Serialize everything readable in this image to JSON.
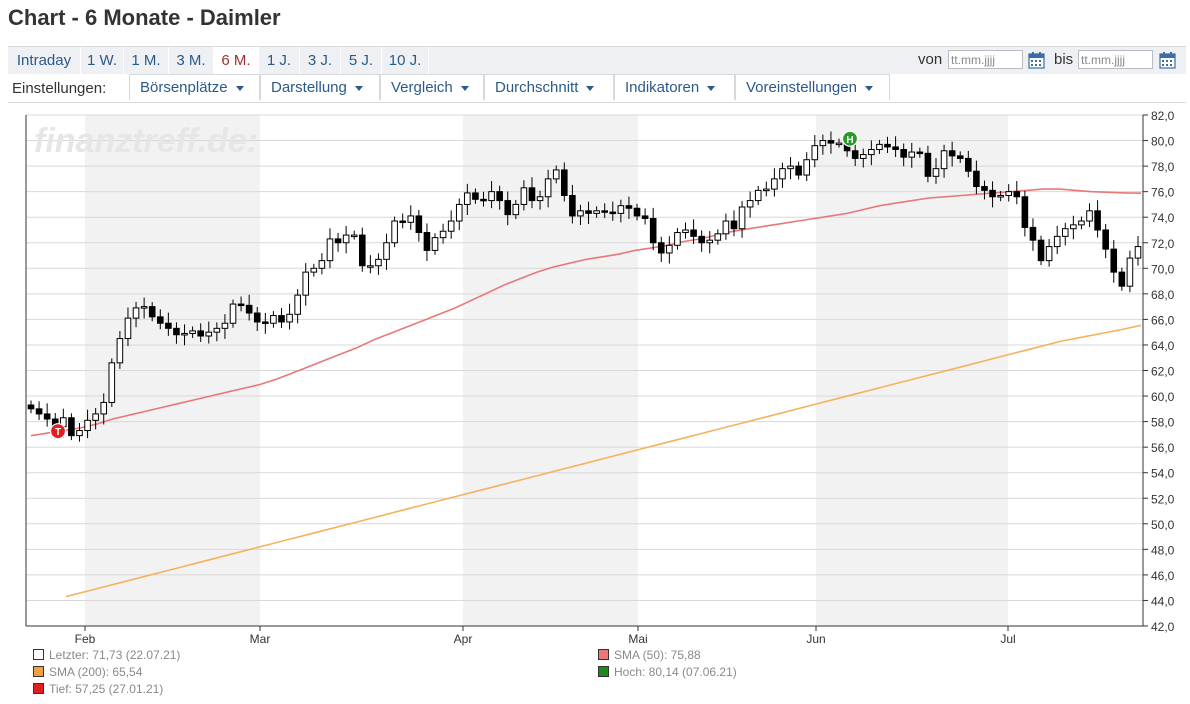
{
  "page_title": "Chart - 6 Monate - Daimler",
  "tabs": [
    "Intraday",
    "1 W.",
    "1 M.",
    "3 M.",
    "6 M.",
    "1 J.",
    "3 J.",
    "5 J.",
    "10 J."
  ],
  "active_tab": "6 M.",
  "date_range": {
    "from_label": "von",
    "from_placeholder": "tt.mm.jjjj",
    "to_label": "bis",
    "to_placeholder": "tt.mm.jjjj"
  },
  "settings": {
    "label": "Einstellungen:",
    "menus": [
      "Börsenplätze",
      "Darstellung",
      "Vergleich",
      "Durchschnitt",
      "Indikatoren",
      "Voreinstellungen"
    ]
  },
  "watermark": "finanztreff.de:",
  "colors": {
    "sma50": "#e87878",
    "sma200": "#f4b25e",
    "low_marker": "#e02020",
    "high_marker": "#2a9a2a",
    "candle": "#000000",
    "band": "#f2f2f2",
    "grid": "#d8d8d8"
  },
  "markers": {
    "low_letter": "T",
    "high_letter": "H"
  },
  "chart_data": {
    "type": "candlestick",
    "y_range": [
      42,
      82
    ],
    "y_ticks": [
      "82,0",
      "80,0",
      "78,0",
      "76,0",
      "74,0",
      "72,0",
      "70,0",
      "68,0",
      "66,0",
      "64,0",
      "62,0",
      "60,0",
      "58,0",
      "56,0",
      "54,0",
      "52,0",
      "50,0",
      "48,0",
      "46,0",
      "44,0",
      "42,0"
    ],
    "x_labels": [
      "Feb",
      "Mar",
      "Apr",
      "Mai",
      "Jun",
      "Jul"
    ],
    "grid": true,
    "close_series": [
      59.0,
      58.6,
      58.2,
      57.6,
      58.3,
      56.9,
      57.3,
      58.1,
      58.6,
      59.5,
      62.6,
      64.5,
      66.1,
      66.9,
      67.0,
      66.2,
      65.7,
      65.3,
      64.8,
      64.9,
      65.1,
      64.7,
      65.0,
      65.3,
      65.7,
      67.2,
      67.1,
      66.5,
      65.8,
      65.7,
      66.3,
      65.8,
      66.4,
      67.9,
      69.7,
      70.0,
      70.6,
      72.3,
      72.0,
      72.6,
      72.6,
      70.2,
      70.2,
      70.7,
      72.0,
      73.7,
      73.6,
      74.1,
      72.8,
      71.4,
      72.4,
      72.9,
      73.7,
      75.0,
      75.9,
      75.4,
      75.3,
      76.0,
      75.3,
      74.2,
      75.0,
      76.3,
      75.3,
      75.6,
      77.0,
      77.7,
      75.7,
      74.1,
      74.5,
      74.3,
      74.5,
      74.4,
      74.3,
      74.9,
      74.7,
      74.1,
      73.9,
      72.0,
      71.2,
      71.8,
      72.8,
      73.0,
      72.5,
      72.0,
      72.2,
      72.7,
      73.7,
      73.1,
      74.8,
      75.3,
      76.1,
      76.2,
      77.0,
      77.8,
      78.0,
      77.3,
      78.5,
      79.6,
      80.0,
      79.8,
      79.8,
      79.2,
      78.6,
      78.9,
      79.3,
      79.7,
      79.5,
      79.3,
      78.7,
      79.1,
      79.0,
      77.2,
      77.8,
      79.2,
      78.8,
      78.6,
      77.6,
      76.4,
      76.1,
      75.6,
      75.7,
      76.0,
      75.6,
      73.2,
      72.2,
      70.6,
      71.7,
      72.5,
      73.1,
      73.4,
      73.7,
      74.5,
      73.0,
      71.5,
      69.7,
      68.6,
      70.8,
      71.7
    ],
    "sma50_series": [
      56.9,
      57.1,
      57.3,
      57.5,
      57.8,
      58.2,
      58.5,
      58.8,
      59.1,
      59.4,
      59.7,
      60.0,
      60.3,
      60.6,
      60.9,
      61.3,
      61.8,
      62.3,
      62.8,
      63.3,
      63.8,
      64.4,
      64.9,
      65.4,
      65.9,
      66.4,
      66.9,
      67.5,
      68.1,
      68.7,
      69.2,
      69.7,
      70.1,
      70.4,
      70.7,
      70.9,
      71.1,
      71.4,
      71.6,
      71.8,
      72.1,
      72.3,
      72.6,
      72.9,
      73.1,
      73.3,
      73.5,
      73.7,
      73.9,
      74.1,
      74.3,
      74.6,
      74.9,
      75.1,
      75.3,
      75.5,
      75.6,
      75.7,
      75.8,
      75.9,
      76.0,
      76.1,
      76.2,
      76.2,
      76.1,
      76.0,
      75.95,
      75.9,
      75.88
    ],
    "sma200_series": [
      44.3,
      44.7,
      45.1,
      45.5,
      45.9,
      46.3,
      46.7,
      47.1,
      47.5,
      47.9,
      48.3,
      48.7,
      49.1,
      49.5,
      49.9,
      50.3,
      50.7,
      51.1,
      51.5,
      51.9,
      52.3,
      52.7,
      53.1,
      53.5,
      53.9,
      54.3,
      54.7,
      55.1,
      55.5,
      55.9,
      56.3,
      56.7,
      57.1,
      57.5,
      57.9,
      58.3,
      58.7,
      59.1,
      59.5,
      59.9,
      60.3,
      60.7,
      61.1,
      61.5,
      61.9,
      62.3,
      62.7,
      63.1,
      63.5,
      63.9,
      64.3,
      64.6,
      64.9,
      65.2,
      65.54
    ],
    "low_point": {
      "label": "Tief",
      "value": 57.25,
      "date": "27.01.21"
    },
    "high_point": {
      "label": "Hoch",
      "value": 80.14,
      "date": "07.06.21"
    }
  },
  "legend": [
    {
      "text": "Letzter: 71,73 (22.07.21)",
      "color": "#ffffff"
    },
    {
      "text": "SMA (50): 75,88",
      "color": "#e87878"
    },
    {
      "text": "SMA (200): 65,54",
      "color": "#f4a040"
    },
    {
      "text": "Hoch: 80,14 (07.06.21)",
      "color": "#1a8a1a"
    },
    {
      "text": "Tief: 57,25 (27.01.21)",
      "color": "#e02020"
    }
  ]
}
